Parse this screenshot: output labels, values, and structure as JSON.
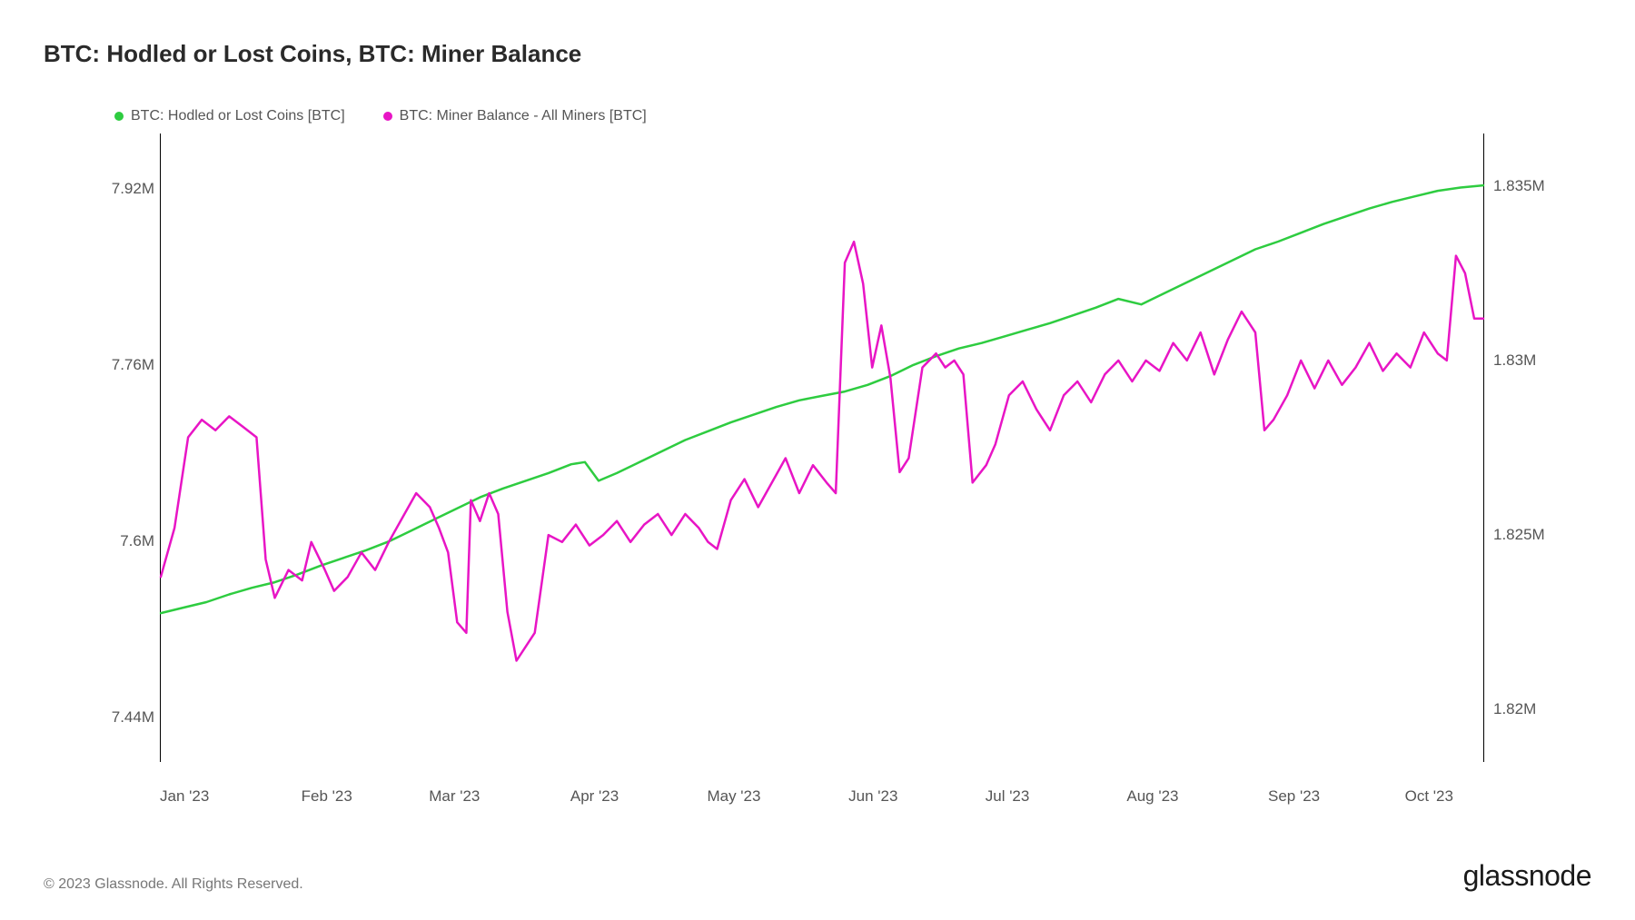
{
  "title": "BTC: Hodled or Lost Coins, BTC: Miner Balance",
  "legend": {
    "series1": {
      "label": "BTC: Hodled or Lost Coins [BTC]",
      "color": "#2ecc40"
    },
    "series2": {
      "label": "BTC: Miner Balance - All Miners [BTC]",
      "color": "#e815c5"
    }
  },
  "chart": {
    "type": "line",
    "background_color": "#ffffff",
    "axis_color": "#000000",
    "text_color": "#555555",
    "line_width": 2.5,
    "x": {
      "min": 0,
      "max": 290,
      "ticks": [
        {
          "pos": 0,
          "label": "Jan '23"
        },
        {
          "pos": 31,
          "label": "Feb '23"
        },
        {
          "pos": 59,
          "label": "Mar '23"
        },
        {
          "pos": 90,
          "label": "Apr '23"
        },
        {
          "pos": 120,
          "label": "May '23"
        },
        {
          "pos": 151,
          "label": "Jun '23"
        },
        {
          "pos": 181,
          "label": "Jul '23"
        },
        {
          "pos": 212,
          "label": "Aug '23"
        },
        {
          "pos": 243,
          "label": "Sep '23"
        },
        {
          "pos": 273,
          "label": "Oct '23"
        }
      ]
    },
    "y_left": {
      "min": 7.4,
      "max": 7.97,
      "ticks": [
        {
          "val": 7.44,
          "label": "7.44M"
        },
        {
          "val": 7.6,
          "label": "7.6M"
        },
        {
          "val": 7.76,
          "label": "7.76M"
        },
        {
          "val": 7.92,
          "label": "7.92M"
        }
      ]
    },
    "y_right": {
      "min": 1.8185,
      "max": 1.8365,
      "ticks": [
        {
          "val": 1.82,
          "label": "1.82M"
        },
        {
          "val": 1.825,
          "label": "1.825M"
        },
        {
          "val": 1.83,
          "label": "1.83M"
        },
        {
          "val": 1.835,
          "label": "1.835M"
        }
      ]
    },
    "series_green": {
      "color": "#2ecc40",
      "axis": "left",
      "points": [
        [
          0,
          7.535
        ],
        [
          5,
          7.54
        ],
        [
          10,
          7.545
        ],
        [
          15,
          7.552
        ],
        [
          20,
          7.558
        ],
        [
          25,
          7.563
        ],
        [
          30,
          7.57
        ],
        [
          35,
          7.578
        ],
        [
          40,
          7.585
        ],
        [
          45,
          7.592
        ],
        [
          50,
          7.6
        ],
        [
          55,
          7.61
        ],
        [
          60,
          7.62
        ],
        [
          65,
          7.63
        ],
        [
          70,
          7.64
        ],
        [
          75,
          7.648
        ],
        [
          80,
          7.655
        ],
        [
          85,
          7.662
        ],
        [
          90,
          7.67
        ],
        [
          93,
          7.672
        ],
        [
          96,
          7.655
        ],
        [
          100,
          7.662
        ],
        [
          105,
          7.672
        ],
        [
          110,
          7.682
        ],
        [
          115,
          7.692
        ],
        [
          120,
          7.7
        ],
        [
          125,
          7.708
        ],
        [
          130,
          7.715
        ],
        [
          135,
          7.722
        ],
        [
          140,
          7.728
        ],
        [
          145,
          7.732
        ],
        [
          150,
          7.736
        ],
        [
          155,
          7.742
        ],
        [
          160,
          7.75
        ],
        [
          165,
          7.76
        ],
        [
          170,
          7.768
        ],
        [
          175,
          7.775
        ],
        [
          180,
          7.78
        ],
        [
          185,
          7.786
        ],
        [
          190,
          7.792
        ],
        [
          195,
          7.798
        ],
        [
          200,
          7.805
        ],
        [
          205,
          7.812
        ],
        [
          210,
          7.82
        ],
        [
          215,
          7.815
        ],
        [
          220,
          7.825
        ],
        [
          225,
          7.835
        ],
        [
          230,
          7.845
        ],
        [
          235,
          7.855
        ],
        [
          240,
          7.865
        ],
        [
          245,
          7.872
        ],
        [
          250,
          7.88
        ],
        [
          255,
          7.888
        ],
        [
          260,
          7.895
        ],
        [
          265,
          7.902
        ],
        [
          270,
          7.908
        ],
        [
          275,
          7.913
        ],
        [
          280,
          7.918
        ],
        [
          285,
          7.921
        ],
        [
          290,
          7.923
        ]
      ]
    },
    "series_magenta": {
      "color": "#e815c5",
      "axis": "right",
      "points": [
        [
          0,
          1.8238
        ],
        [
          3,
          1.8252
        ],
        [
          6,
          1.8278
        ],
        [
          9,
          1.8283
        ],
        [
          12,
          1.828
        ],
        [
          15,
          1.8284
        ],
        [
          18,
          1.8281
        ],
        [
          21,
          1.8278
        ],
        [
          23,
          1.8243
        ],
        [
          25,
          1.8232
        ],
        [
          28,
          1.824
        ],
        [
          31,
          1.8237
        ],
        [
          33,
          1.8248
        ],
        [
          36,
          1.824
        ],
        [
          38,
          1.8234
        ],
        [
          41,
          1.8238
        ],
        [
          44,
          1.8245
        ],
        [
          47,
          1.824
        ],
        [
          50,
          1.8248
        ],
        [
          53,
          1.8255
        ],
        [
          56,
          1.8262
        ],
        [
          59,
          1.8258
        ],
        [
          61,
          1.8252
        ],
        [
          63,
          1.8245
        ],
        [
          65,
          1.8225
        ],
        [
          67,
          1.8222
        ],
        [
          68,
          1.826
        ],
        [
          70,
          1.8254
        ],
        [
          72,
          1.8262
        ],
        [
          74,
          1.8256
        ],
        [
          76,
          1.8228
        ],
        [
          78,
          1.8214
        ],
        [
          80,
          1.8218
        ],
        [
          82,
          1.8222
        ],
        [
          85,
          1.825
        ],
        [
          88,
          1.8248
        ],
        [
          91,
          1.8253
        ],
        [
          94,
          1.8247
        ],
        [
          97,
          1.825
        ],
        [
          100,
          1.8254
        ],
        [
          103,
          1.8248
        ],
        [
          106,
          1.8253
        ],
        [
          109,
          1.8256
        ],
        [
          112,
          1.825
        ],
        [
          115,
          1.8256
        ],
        [
          118,
          1.8252
        ],
        [
          120,
          1.8248
        ],
        [
          122,
          1.8246
        ],
        [
          125,
          1.826
        ],
        [
          128,
          1.8266
        ],
        [
          131,
          1.8258
        ],
        [
          134,
          1.8265
        ],
        [
          137,
          1.8272
        ],
        [
          140,
          1.8262
        ],
        [
          143,
          1.827
        ],
        [
          146,
          1.8265
        ],
        [
          148,
          1.8262
        ],
        [
          150,
          1.8328
        ],
        [
          152,
          1.8334
        ],
        [
          154,
          1.8322
        ],
        [
          156,
          1.8298
        ],
        [
          158,
          1.831
        ],
        [
          160,
          1.8295
        ],
        [
          162,
          1.8268
        ],
        [
          164,
          1.8272
        ],
        [
          167,
          1.8298
        ],
        [
          170,
          1.8302
        ],
        [
          172,
          1.8298
        ],
        [
          174,
          1.83
        ],
        [
          176,
          1.8296
        ],
        [
          178,
          1.8265
        ],
        [
          181,
          1.827
        ],
        [
          183,
          1.8276
        ],
        [
          186,
          1.829
        ],
        [
          189,
          1.8294
        ],
        [
          192,
          1.8286
        ],
        [
          195,
          1.828
        ],
        [
          198,
          1.829
        ],
        [
          201,
          1.8294
        ],
        [
          204,
          1.8288
        ],
        [
          207,
          1.8296
        ],
        [
          210,
          1.83
        ],
        [
          213,
          1.8294
        ],
        [
          216,
          1.83
        ],
        [
          219,
          1.8297
        ],
        [
          222,
          1.8305
        ],
        [
          225,
          1.83
        ],
        [
          228,
          1.8308
        ],
        [
          231,
          1.8296
        ],
        [
          234,
          1.8306
        ],
        [
          237,
          1.8314
        ],
        [
          240,
          1.8308
        ],
        [
          242,
          1.828
        ],
        [
          244,
          1.8283
        ],
        [
          247,
          1.829
        ],
        [
          250,
          1.83
        ],
        [
          253,
          1.8292
        ],
        [
          256,
          1.83
        ],
        [
          259,
          1.8293
        ],
        [
          262,
          1.8298
        ],
        [
          265,
          1.8305
        ],
        [
          268,
          1.8297
        ],
        [
          271,
          1.8302
        ],
        [
          274,
          1.8298
        ],
        [
          277,
          1.8308
        ],
        [
          280,
          1.8302
        ],
        [
          282,
          1.83
        ],
        [
          284,
          1.833
        ],
        [
          286,
          1.8325
        ],
        [
          288,
          1.8312
        ],
        [
          290,
          1.8312
        ]
      ]
    }
  },
  "footer": {
    "copyright": "© 2023 Glassnode. All Rights Reserved.",
    "brand": "glassnode"
  }
}
